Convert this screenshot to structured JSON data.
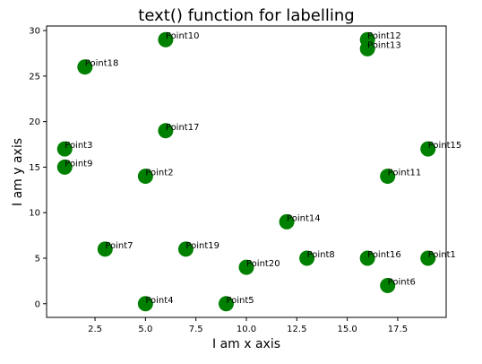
{
  "chart_data": {
    "type": "scatter",
    "title": "text() function for labelling",
    "xlabel": "I am x axis",
    "ylabel": "I am y axis",
    "xlim": [
      0.1,
      19.9
    ],
    "ylim": [
      -1.5,
      30.5
    ],
    "xticks": [
      "2.5",
      "5.0",
      "7.5",
      "10.0",
      "12.5",
      "15.0",
      "17.5"
    ],
    "xtick_values": [
      2.5,
      5.0,
      7.5,
      10.0,
      12.5,
      15.0,
      17.5
    ],
    "yticks": [
      "0",
      "5",
      "10",
      "15",
      "20",
      "25",
      "30"
    ],
    "ytick_values": [
      0,
      5,
      10,
      15,
      20,
      25,
      30
    ],
    "grid": false,
    "marker_color": "#008000",
    "points": [
      {
        "label": "Point1",
        "x": 19,
        "y": 5
      },
      {
        "label": "Point2",
        "x": 5,
        "y": 14
      },
      {
        "label": "Point3",
        "x": 1,
        "y": 17
      },
      {
        "label": "Point4",
        "x": 5,
        "y": 0
      },
      {
        "label": "Point5",
        "x": 9,
        "y": 0
      },
      {
        "label": "Point6",
        "x": 17,
        "y": 2
      },
      {
        "label": "Point7",
        "x": 3,
        "y": 6
      },
      {
        "label": "Point8",
        "x": 13,
        "y": 5
      },
      {
        "label": "Point9",
        "x": 1,
        "y": 15
      },
      {
        "label": "Point10",
        "x": 6,
        "y": 29
      },
      {
        "label": "Point11",
        "x": 17,
        "y": 14
      },
      {
        "label": "Point12",
        "x": 16,
        "y": 29
      },
      {
        "label": "Point13",
        "x": 16,
        "y": 28
      },
      {
        "label": "Point14",
        "x": 12,
        "y": 9
      },
      {
        "label": "Point15",
        "x": 19,
        "y": 17
      },
      {
        "label": "Point16",
        "x": 16,
        "y": 5
      },
      {
        "label": "Point17",
        "x": 6,
        "y": 19
      },
      {
        "label": "Point18",
        "x": 2,
        "y": 26
      },
      {
        "label": "Point19",
        "x": 7,
        "y": 6
      },
      {
        "label": "Point20",
        "x": 10,
        "y": 4
      }
    ]
  }
}
